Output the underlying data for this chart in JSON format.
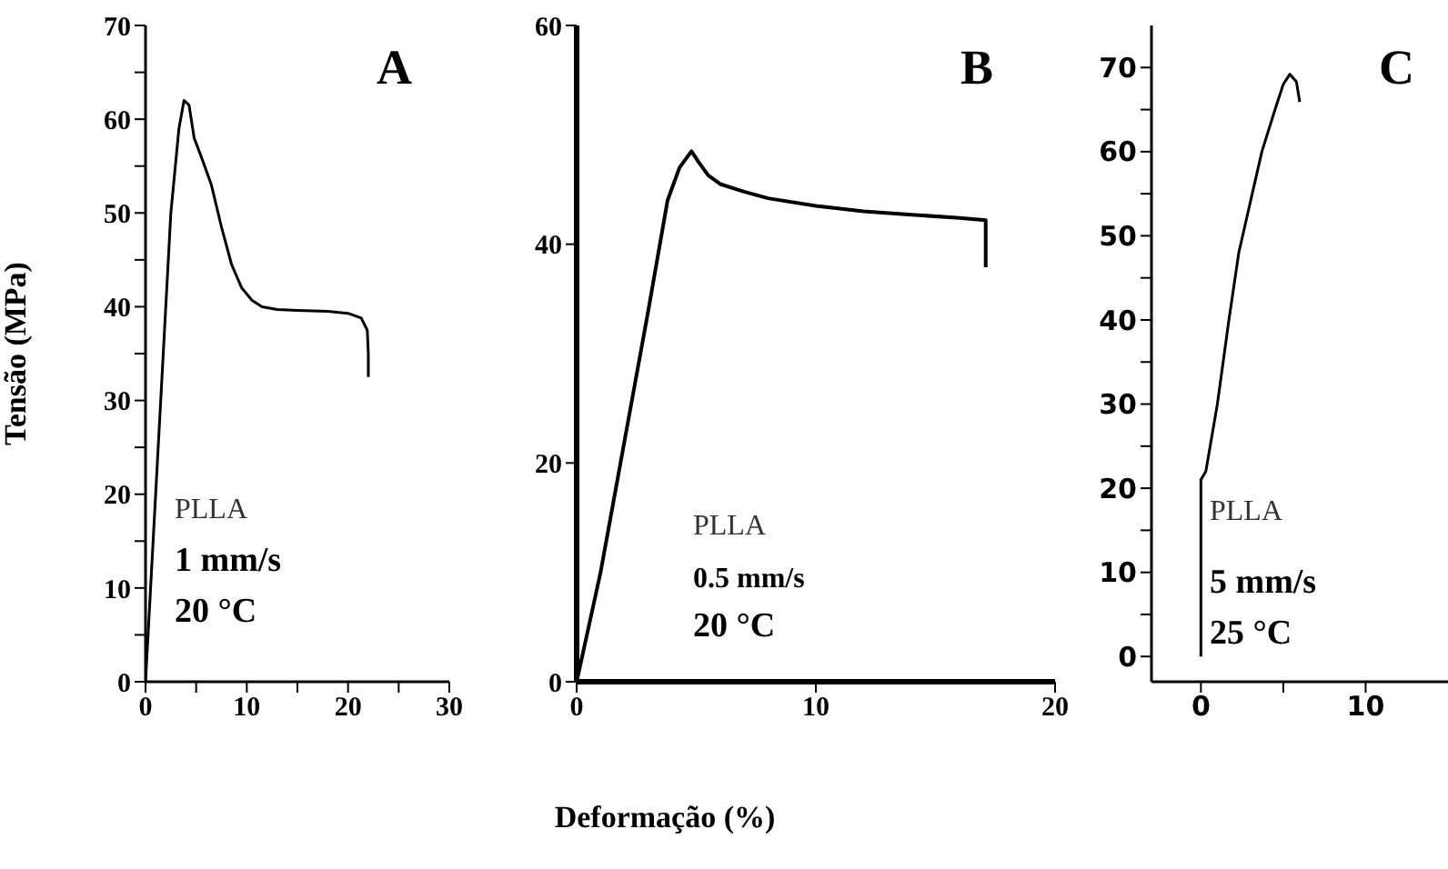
{
  "chart_data": [
    {
      "type": "line",
      "title": "A",
      "ylabel": "Tensão (MPa)",
      "xlim": [
        0,
        30
      ],
      "xticks": [
        0,
        {
          "value": 5,
          "label": null
        },
        10,
        {
          "value": 15,
          "label": null
        },
        20,
        {
          "value": 25,
          "label": null
        },
        30
      ],
      "ylim": [
        0,
        70
      ],
      "yticks": [
        0,
        {
          "value": 5,
          "label": null
        },
        10,
        {
          "value": 15,
          "label": null
        },
        20,
        {
          "value": 25,
          "label": null
        },
        30,
        {
          "value": 35,
          "label": null
        },
        40,
        {
          "value": 45,
          "label": null
        },
        50,
        {
          "value": 55,
          "label": null
        },
        60,
        {
          "value": 65,
          "label": null
        },
        70
      ],
      "marker": "none",
      "line_style": "solid",
      "annotations": [
        "PLLA",
        "1 mm/s",
        "20 °C"
      ],
      "series": [
        {
          "color": "#000000",
          "x": [
            0,
            0.5,
            1.5,
            2.5,
            3.3,
            3.8,
            4.3,
            4.8,
            5.5,
            6.5,
            7.5,
            8.5,
            9.5,
            10.5,
            11.5,
            13,
            15,
            18,
            20,
            21.3,
            21.9,
            22,
            22
          ],
          "values": [
            0,
            10,
            30,
            50,
            59,
            62,
            61.5,
            58,
            56,
            53,
            48.5,
            44.5,
            42,
            40.7,
            40,
            39.7,
            39.6,
            39.5,
            39.3,
            38.8,
            37.5,
            35,
            32.5
          ]
        }
      ]
    },
    {
      "type": "line",
      "title": "B",
      "xlabel": "Deformação (%)",
      "xlim": [
        0,
        20
      ],
      "xticks": [
        0,
        10,
        20
      ],
      "ylim": [
        0,
        60
      ],
      "yticks": [
        0,
        20,
        40,
        60
      ],
      "marker": "none",
      "line_style": "solid",
      "annotations": [
        "PLLA",
        "0.5 mm/s",
        "20 °C"
      ],
      "series": [
        {
          "color": "#000000",
          "x": [
            0,
            0.5,
            1,
            2,
            3,
            3.8,
            4.3,
            4.8,
            5.1,
            5.5,
            6,
            7,
            8,
            10,
            12,
            14,
            16,
            17.1,
            17.1
          ],
          "values": [
            0,
            5,
            10,
            22,
            34,
            44,
            47,
            48.5,
            47.5,
            46.3,
            45.5,
            44.8,
            44.2,
            43.5,
            43,
            42.7,
            42.4,
            42.2,
            37.9
          ]
        }
      ]
    },
    {
      "type": "line",
      "title": "C",
      "xlim": [
        -3,
        15
      ],
      "xticks": [
        0,
        {
          "value": 5,
          "label": null
        },
        10
      ],
      "ylim": [
        -3,
        75
      ],
      "yticks": [
        0,
        {
          "value": 5,
          "label": null
        },
        10,
        {
          "value": 15,
          "label": null
        },
        20,
        {
          "value": 25,
          "label": null
        },
        30,
        {
          "value": 35,
          "label": null
        },
        40,
        {
          "value": 45,
          "label": null
        },
        50,
        {
          "value": 55,
          "label": null
        },
        60,
        {
          "value": 65,
          "label": null
        },
        70
      ],
      "marker": "none",
      "line_style": "solid",
      "annotations": [
        "PLLA",
        "5 mm/s",
        "25 °C"
      ],
      "series": [
        {
          "color": "#000000",
          "x": [
            0,
            0,
            0,
            0.3,
            1,
            1.7,
            2.3,
            3,
            3.7,
            4.5,
            5,
            5.4,
            5.8,
            6
          ],
          "values": [
            0,
            15,
            21,
            22,
            30,
            40,
            48,
            54,
            60,
            65,
            68,
            69.2,
            68.3,
            65.9
          ]
        }
      ]
    }
  ]
}
